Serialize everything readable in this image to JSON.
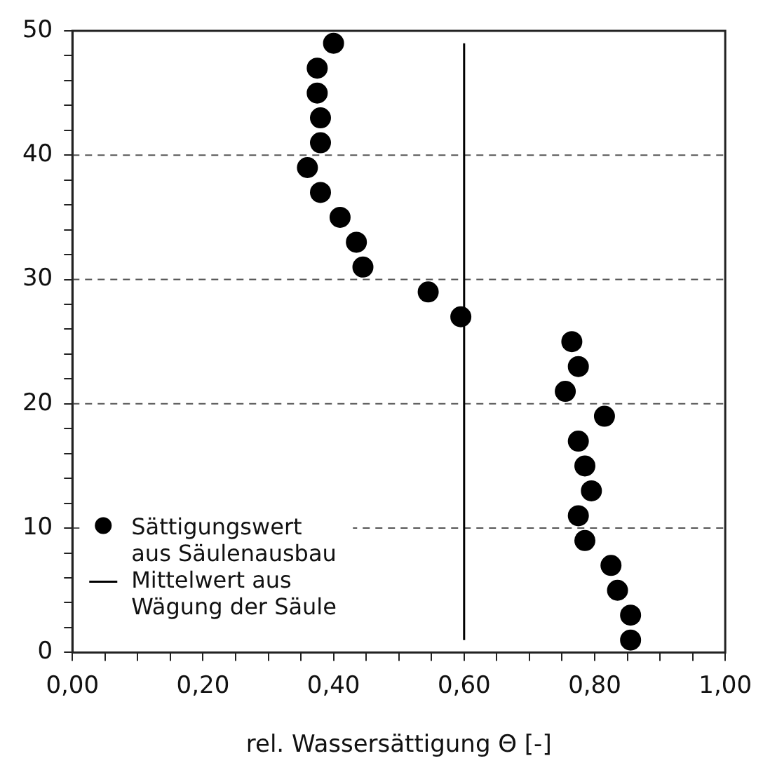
{
  "chart_data": {
    "type": "scatter",
    "xlabel": "rel. Wassersättigung Θ [-]",
    "series": [
      {
        "name": "Sättigungswert aus Säulenausbau",
        "color": "#000000",
        "marker": "circle",
        "x": [
          0.855,
          0.855,
          0.835,
          0.825,
          0.785,
          0.775,
          0.795,
          0.785,
          0.775,
          0.815,
          0.755,
          0.775,
          0.765,
          0.595,
          0.545,
          0.445,
          0.435,
          0.41,
          0.38,
          0.36,
          0.38,
          0.38,
          0.375,
          0.375,
          0.4
        ],
        "values": [
          1,
          3,
          5,
          7,
          9,
          11,
          13,
          15,
          17,
          19,
          21,
          23,
          25,
          27,
          29,
          31,
          33,
          35,
          37,
          39,
          41,
          43,
          45,
          47,
          49
        ]
      },
      {
        "name": "Mittelwert aus Wägung der Säule",
        "type": "line",
        "color": "#000000",
        "marker": "none",
        "line_style": "solid",
        "x": [
          0.6,
          0.6
        ],
        "values": [
          1,
          49
        ]
      }
    ],
    "xlim": [
      0,
      1
    ],
    "xticks": [
      {
        "value": 0,
        "label": "0,00"
      },
      {
        "value": 0.05,
        "label": null
      },
      {
        "value": 0.1,
        "label": null
      },
      {
        "value": 0.15,
        "label": null
      },
      {
        "value": 0.2,
        "label": "0,20"
      },
      {
        "value": 0.25,
        "label": null
      },
      {
        "value": 0.3,
        "label": null
      },
      {
        "value": 0.35,
        "label": null
      },
      {
        "value": 0.4,
        "label": "0,40"
      },
      {
        "value": 0.45,
        "label": null
      },
      {
        "value": 0.5,
        "label": null
      },
      {
        "value": 0.55,
        "label": null
      },
      {
        "value": 0.6,
        "label": "0,60"
      },
      {
        "value": 0.65,
        "label": null
      },
      {
        "value": 0.7,
        "label": null
      },
      {
        "value": 0.75,
        "label": null
      },
      {
        "value": 0.8,
        "label": "0,80"
      },
      {
        "value": 0.85,
        "label": null
      },
      {
        "value": 0.9,
        "label": null
      },
      {
        "value": 0.95,
        "label": null
      },
      {
        "value": 1,
        "label": "1,00"
      }
    ],
    "ylim": [
      0,
      50
    ],
    "yticks": [
      0,
      {
        "value": 2,
        "label": null
      },
      {
        "value": 4,
        "label": null
      },
      {
        "value": 6,
        "label": null
      },
      {
        "value": 8,
        "label": null
      },
      10,
      {
        "value": 12,
        "label": null
      },
      {
        "value": 14,
        "label": null
      },
      {
        "value": 16,
        "label": null
      },
      {
        "value": 18,
        "label": null
      },
      20,
      {
        "value": 22,
        "label": null
      },
      {
        "value": 24,
        "label": null
      },
      {
        "value": 26,
        "label": null
      },
      {
        "value": 28,
        "label": null
      },
      30,
      {
        "value": 32,
        "label": null
      },
      {
        "value": 34,
        "label": null
      },
      {
        "value": 36,
        "label": null
      },
      {
        "value": 38,
        "label": null
      },
      40,
      {
        "value": 42,
        "label": null
      },
      {
        "value": 44,
        "label": null
      },
      {
        "value": 46,
        "label": null
      },
      {
        "value": 48,
        "label": null
      },
      50
    ],
    "grid": "y",
    "legend": "bottom left"
  }
}
